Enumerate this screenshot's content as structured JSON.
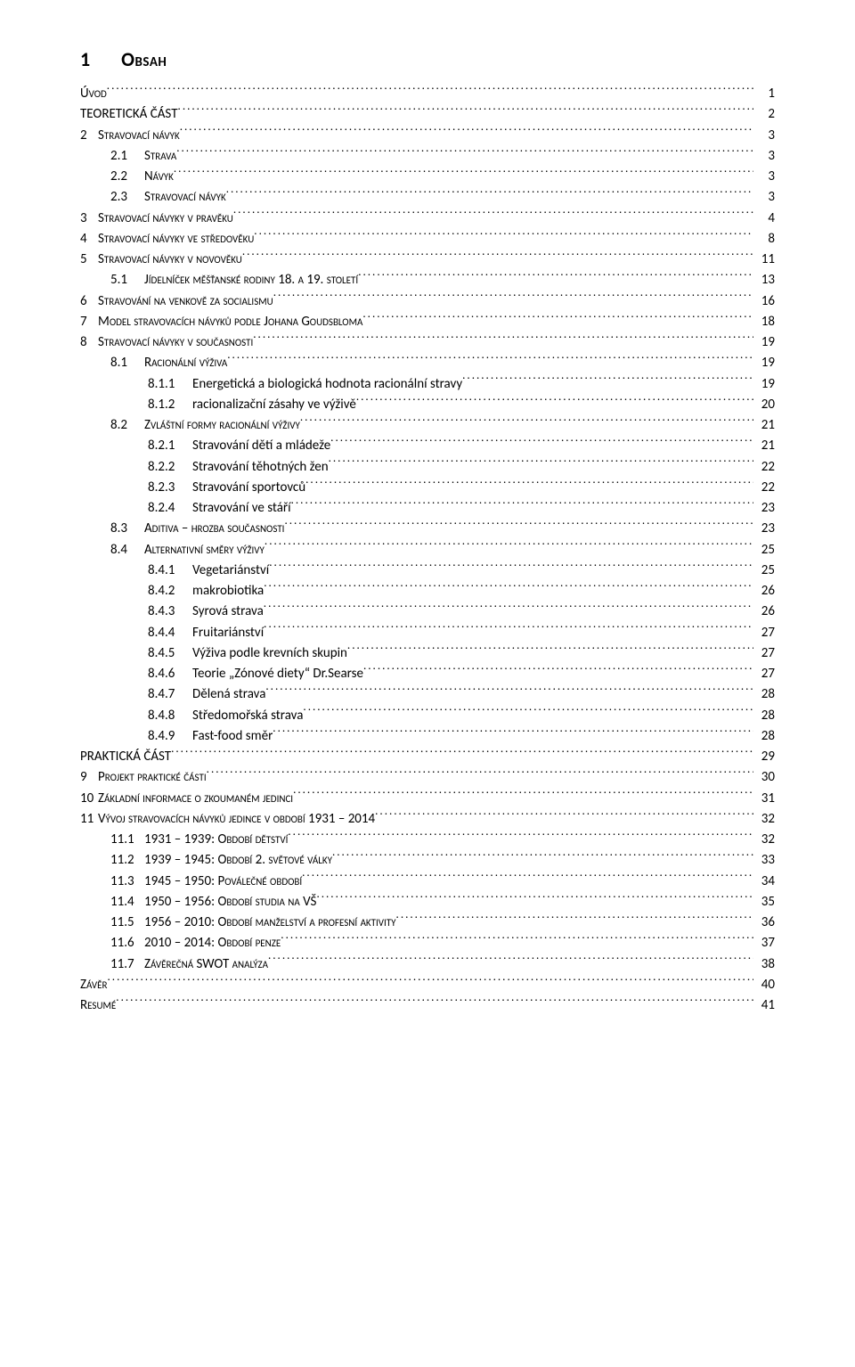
{
  "heading": {
    "number": "1",
    "title": "Obsah"
  },
  "toc": [
    {
      "level": "lvl-1",
      "num": "",
      "label": "Úvod",
      "page": "1"
    },
    {
      "level": "lvl-1",
      "num": "",
      "label": "TEORETICKÁ ČÁST",
      "page": "2"
    },
    {
      "level": "lvl-1n",
      "num": "2",
      "label": "Stravovací návyk",
      "page": "3"
    },
    {
      "level": "lvl-2",
      "num": "2.1",
      "label": "Strava",
      "page": "3"
    },
    {
      "level": "lvl-2",
      "num": "2.2",
      "label": "Návyk",
      "page": "3"
    },
    {
      "level": "lvl-2",
      "num": "2.3",
      "label": "Stravovací návyk",
      "page": "3"
    },
    {
      "level": "lvl-1n",
      "num": "3",
      "label": "Stravovací návyky v pravěku",
      "page": "4"
    },
    {
      "level": "lvl-1n",
      "num": "4",
      "label": "Stravovací návyky ve středověku",
      "page": "8"
    },
    {
      "level": "lvl-1n",
      "num": "5",
      "label": "Stravovací návyky v novověku",
      "page": "11"
    },
    {
      "level": "lvl-2",
      "num": "5.1",
      "label": "Jídelníček měšťanské rodiny 18. a 19. století",
      "page": "13"
    },
    {
      "level": "lvl-1n",
      "num": "6",
      "label": "Stravování na venkově za socialismu",
      "page": "16"
    },
    {
      "level": "lvl-1n",
      "num": "7",
      "label": "Model stravovacích návyků podle Johana Goudsbloma",
      "page": "18"
    },
    {
      "level": "lvl-1n",
      "num": "8",
      "label": "Stravovací návyky v současnosti",
      "page": "19"
    },
    {
      "level": "lvl-2",
      "num": "8.1",
      "label": "Racionální výživa",
      "page": "19"
    },
    {
      "level": "lvl-3",
      "num": "8.1.1",
      "label": "Energetická a biologická hodnota racionální stravy",
      "page": "19"
    },
    {
      "level": "lvl-3",
      "num": "8.1.2",
      "label": "racionalizační zásahy ve výživě",
      "page": "20"
    },
    {
      "level": "lvl-2",
      "num": "8.2",
      "label": "Zvláštní formy racionální výživy",
      "page": "21"
    },
    {
      "level": "lvl-3",
      "num": "8.2.1",
      "label": "Stravování dětí a mládeže",
      "page": "21"
    },
    {
      "level": "lvl-3",
      "num": "8.2.2",
      "label": "Stravování těhotných žen",
      "page": "22"
    },
    {
      "level": "lvl-3",
      "num": "8.2.3",
      "label": "Stravování sportovců",
      "page": "22"
    },
    {
      "level": "lvl-3",
      "num": "8.2.4",
      "label": "Stravování ve stáří",
      "page": "23"
    },
    {
      "level": "lvl-2",
      "num": "8.3",
      "label": "Aditiva – hrozba současnosti",
      "page": "23"
    },
    {
      "level": "lvl-2",
      "num": "8.4",
      "label": "Alternativní směry výživy",
      "page": "25"
    },
    {
      "level": "lvl-3",
      "num": "8.4.1",
      "label": "Vegetariánství",
      "page": "25"
    },
    {
      "level": "lvl-3",
      "num": "8.4.2",
      "label": "makrobiotika",
      "page": "26"
    },
    {
      "level": "lvl-3",
      "num": "8.4.3",
      "label": "Syrová strava",
      "page": "26"
    },
    {
      "level": "lvl-3",
      "num": "8.4.4",
      "label": "Fruitariánství",
      "page": "27"
    },
    {
      "level": "lvl-3",
      "num": "8.4.5",
      "label": "Výživa podle krevních skupin",
      "page": "27"
    },
    {
      "level": "lvl-3",
      "num": "8.4.6",
      "label": "Teorie „Zónové diety“ Dr.Searse",
      "page": "27"
    },
    {
      "level": "lvl-3",
      "num": "8.4.7",
      "label": "Dělená strava",
      "page": "28"
    },
    {
      "level": "lvl-3",
      "num": "8.4.8",
      "label": "Středomořská strava",
      "page": "28"
    },
    {
      "level": "lvl-3",
      "num": "8.4.9",
      "label": "Fast-food směr",
      "page": "28"
    },
    {
      "level": "lvl-1",
      "num": "",
      "label": "PRAKTICKÁ ČÁST",
      "page": "29"
    },
    {
      "level": "lvl-1n",
      "num": "9",
      "label": "Projekt praktické části",
      "page": "30"
    },
    {
      "level": "lvl-1n",
      "num": "10",
      "label": "Základní informace o zkoumaném jedinci",
      "page": "31"
    },
    {
      "level": "lvl-1n",
      "num": "11",
      "label": "Vývoj stravovacích návyků jedince v období 1931 – 2014",
      "page": "32"
    },
    {
      "level": "lvl-2",
      "num": "11.1",
      "label": "1931 – 1939: Období dětství",
      "page": "32"
    },
    {
      "level": "lvl-2",
      "num": "11.2",
      "label": "1939 – 1945: Období 2. světové války",
      "page": "33"
    },
    {
      "level": "lvl-2",
      "num": "11.3",
      "label": "1945 – 1950: Poválečné období",
      "page": "34"
    },
    {
      "level": "lvl-2",
      "num": "11.4",
      "label": "1950 – 1956: Období studia na VŠ",
      "page": "35"
    },
    {
      "level": "lvl-2",
      "num": "11.5",
      "label": "1956 – 2010: Období manželství a profesní aktivity",
      "page": "36"
    },
    {
      "level": "lvl-2",
      "num": "11.6",
      "label": "2010 – 2014: Období penze",
      "page": "37"
    },
    {
      "level": "lvl-2",
      "num": "11.7",
      "label": "Závěrečná SWOT analýza",
      "page": "38"
    },
    {
      "level": "lvl-1",
      "num": "",
      "label": "Závěr",
      "page": "40"
    },
    {
      "level": "lvl-1",
      "num": "",
      "label": "Resumé",
      "page": "41"
    }
  ]
}
